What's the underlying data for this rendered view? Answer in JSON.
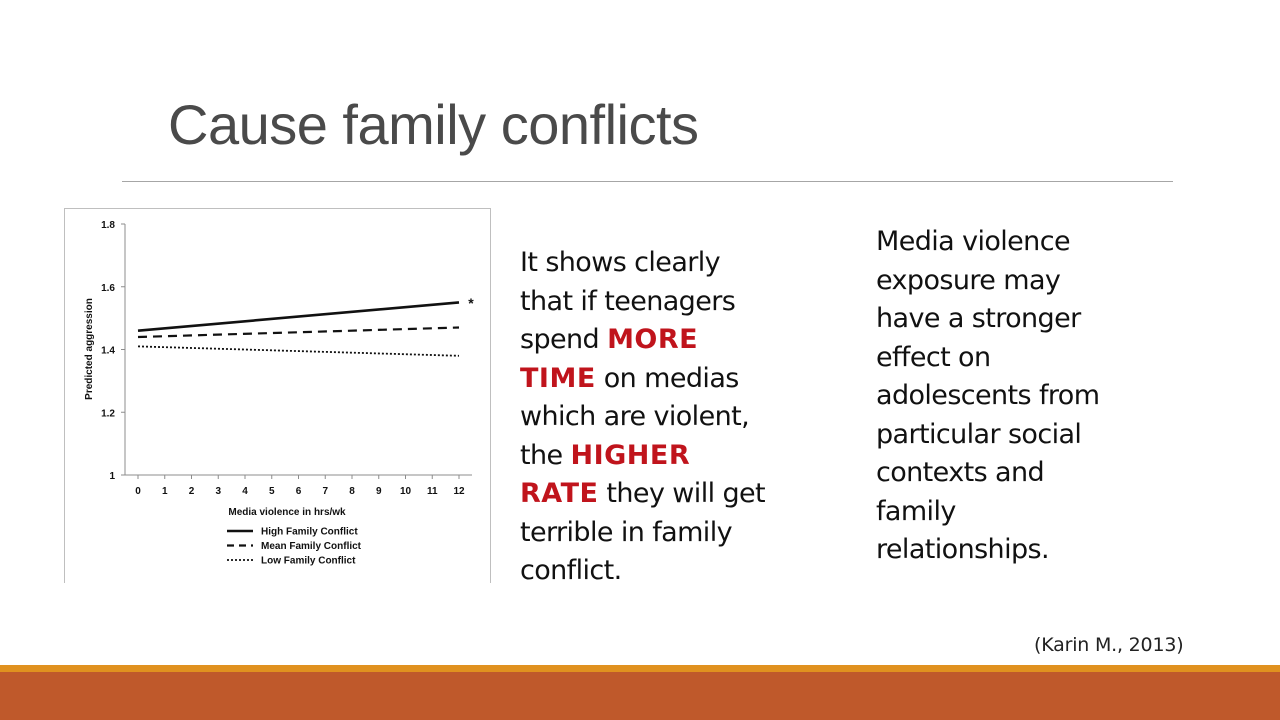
{
  "slide": {
    "title": "Cause family conflicts",
    "paragraph1": {
      "part1": "It shows clearly that if teenagers spend ",
      "emph1": "more time",
      "part2": " on medias which are violent, the ",
      "emph2": "higher rate",
      "part3": " they will get terrible in family conflict."
    },
    "paragraph2": "Media violence exposure may have a stronger effect on adolescents from particular social contexts and family relationships.",
    "citation": "(Karin M., 2013)",
    "colors": {
      "accent_bar": "#e0911f",
      "footer_bar": "#bf592b",
      "emphasis": "#c0141c",
      "title": "#4a4a4a"
    }
  },
  "chart_data": {
    "type": "line",
    "xlabel": "Media violence in hrs/wk",
    "ylabel": "Predicted aggression",
    "x_ticks": [
      "0",
      "1",
      "2",
      "3",
      "4",
      "5",
      "6",
      "7",
      "8",
      "9",
      "10",
      "11",
      "12"
    ],
    "y_ticks": [
      "1",
      "1.2",
      "1.4",
      "1.6",
      "1.8"
    ],
    "xlim": [
      0,
      12
    ],
    "ylim": [
      1,
      1.8
    ],
    "annotation": "*",
    "series": [
      {
        "name": "High Family Conflict",
        "style": "solid",
        "x": [
          0,
          12
        ],
        "y": [
          1.46,
          1.55
        ]
      },
      {
        "name": "Mean Family Conflict",
        "style": "dashed",
        "x": [
          0,
          12
        ],
        "y": [
          1.44,
          1.47
        ]
      },
      {
        "name": "Low Family Conflict",
        "style": "dotted",
        "x": [
          0,
          12
        ],
        "y": [
          1.41,
          1.38
        ]
      }
    ],
    "legend_position": "bottom",
    "grid": false
  }
}
